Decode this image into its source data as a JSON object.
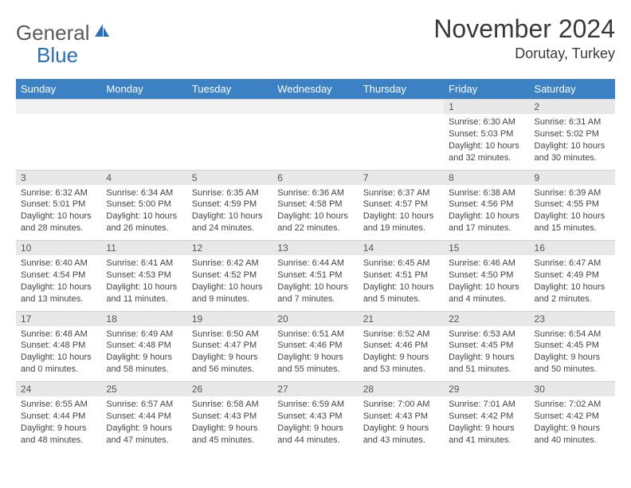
{
  "brand": {
    "part1": "General",
    "part2": "Blue"
  },
  "title": "November 2024",
  "location": "Dorutay, Turkey",
  "colors": {
    "header_bg": "#3b81c3",
    "header_text": "#ffffff",
    "daynum_bg": "#e8e8e8",
    "text": "#444444",
    "logo_gray": "#5a5a5a",
    "logo_blue": "#2a6fb5"
  },
  "weekdays": [
    "Sunday",
    "Monday",
    "Tuesday",
    "Wednesday",
    "Thursday",
    "Friday",
    "Saturday"
  ],
  "weeks": [
    {
      "nums": [
        "",
        "",
        "",
        "",
        "",
        "1",
        "2"
      ],
      "cells": [
        {
          "empty": true
        },
        {
          "empty": true
        },
        {
          "empty": true
        },
        {
          "empty": true
        },
        {
          "empty": true
        },
        {
          "sunrise": "Sunrise: 6:30 AM",
          "sunset": "Sunset: 5:03 PM",
          "daylight": "Daylight: 10 hours and 32 minutes."
        },
        {
          "sunrise": "Sunrise: 6:31 AM",
          "sunset": "Sunset: 5:02 PM",
          "daylight": "Daylight: 10 hours and 30 minutes."
        }
      ]
    },
    {
      "nums": [
        "3",
        "4",
        "5",
        "6",
        "7",
        "8",
        "9"
      ],
      "cells": [
        {
          "sunrise": "Sunrise: 6:32 AM",
          "sunset": "Sunset: 5:01 PM",
          "daylight": "Daylight: 10 hours and 28 minutes."
        },
        {
          "sunrise": "Sunrise: 6:34 AM",
          "sunset": "Sunset: 5:00 PM",
          "daylight": "Daylight: 10 hours and 26 minutes."
        },
        {
          "sunrise": "Sunrise: 6:35 AM",
          "sunset": "Sunset: 4:59 PM",
          "daylight": "Daylight: 10 hours and 24 minutes."
        },
        {
          "sunrise": "Sunrise: 6:36 AM",
          "sunset": "Sunset: 4:58 PM",
          "daylight": "Daylight: 10 hours and 22 minutes."
        },
        {
          "sunrise": "Sunrise: 6:37 AM",
          "sunset": "Sunset: 4:57 PM",
          "daylight": "Daylight: 10 hours and 19 minutes."
        },
        {
          "sunrise": "Sunrise: 6:38 AM",
          "sunset": "Sunset: 4:56 PM",
          "daylight": "Daylight: 10 hours and 17 minutes."
        },
        {
          "sunrise": "Sunrise: 6:39 AM",
          "sunset": "Sunset: 4:55 PM",
          "daylight": "Daylight: 10 hours and 15 minutes."
        }
      ]
    },
    {
      "nums": [
        "10",
        "11",
        "12",
        "13",
        "14",
        "15",
        "16"
      ],
      "cells": [
        {
          "sunrise": "Sunrise: 6:40 AM",
          "sunset": "Sunset: 4:54 PM",
          "daylight": "Daylight: 10 hours and 13 minutes."
        },
        {
          "sunrise": "Sunrise: 6:41 AM",
          "sunset": "Sunset: 4:53 PM",
          "daylight": "Daylight: 10 hours and 11 minutes."
        },
        {
          "sunrise": "Sunrise: 6:42 AM",
          "sunset": "Sunset: 4:52 PM",
          "daylight": "Daylight: 10 hours and 9 minutes."
        },
        {
          "sunrise": "Sunrise: 6:44 AM",
          "sunset": "Sunset: 4:51 PM",
          "daylight": "Daylight: 10 hours and 7 minutes."
        },
        {
          "sunrise": "Sunrise: 6:45 AM",
          "sunset": "Sunset: 4:51 PM",
          "daylight": "Daylight: 10 hours and 5 minutes."
        },
        {
          "sunrise": "Sunrise: 6:46 AM",
          "sunset": "Sunset: 4:50 PM",
          "daylight": "Daylight: 10 hours and 4 minutes."
        },
        {
          "sunrise": "Sunrise: 6:47 AM",
          "sunset": "Sunset: 4:49 PM",
          "daylight": "Daylight: 10 hours and 2 minutes."
        }
      ]
    },
    {
      "nums": [
        "17",
        "18",
        "19",
        "20",
        "21",
        "22",
        "23"
      ],
      "cells": [
        {
          "sunrise": "Sunrise: 6:48 AM",
          "sunset": "Sunset: 4:48 PM",
          "daylight": "Daylight: 10 hours and 0 minutes."
        },
        {
          "sunrise": "Sunrise: 6:49 AM",
          "sunset": "Sunset: 4:48 PM",
          "daylight": "Daylight: 9 hours and 58 minutes."
        },
        {
          "sunrise": "Sunrise: 6:50 AM",
          "sunset": "Sunset: 4:47 PM",
          "daylight": "Daylight: 9 hours and 56 minutes."
        },
        {
          "sunrise": "Sunrise: 6:51 AM",
          "sunset": "Sunset: 4:46 PM",
          "daylight": "Daylight: 9 hours and 55 minutes."
        },
        {
          "sunrise": "Sunrise: 6:52 AM",
          "sunset": "Sunset: 4:46 PM",
          "daylight": "Daylight: 9 hours and 53 minutes."
        },
        {
          "sunrise": "Sunrise: 6:53 AM",
          "sunset": "Sunset: 4:45 PM",
          "daylight": "Daylight: 9 hours and 51 minutes."
        },
        {
          "sunrise": "Sunrise: 6:54 AM",
          "sunset": "Sunset: 4:45 PM",
          "daylight": "Daylight: 9 hours and 50 minutes."
        }
      ]
    },
    {
      "nums": [
        "24",
        "25",
        "26",
        "27",
        "28",
        "29",
        "30"
      ],
      "cells": [
        {
          "sunrise": "Sunrise: 6:55 AM",
          "sunset": "Sunset: 4:44 PM",
          "daylight": "Daylight: 9 hours and 48 minutes."
        },
        {
          "sunrise": "Sunrise: 6:57 AM",
          "sunset": "Sunset: 4:44 PM",
          "daylight": "Daylight: 9 hours and 47 minutes."
        },
        {
          "sunrise": "Sunrise: 6:58 AM",
          "sunset": "Sunset: 4:43 PM",
          "daylight": "Daylight: 9 hours and 45 minutes."
        },
        {
          "sunrise": "Sunrise: 6:59 AM",
          "sunset": "Sunset: 4:43 PM",
          "daylight": "Daylight: 9 hours and 44 minutes."
        },
        {
          "sunrise": "Sunrise: 7:00 AM",
          "sunset": "Sunset: 4:43 PM",
          "daylight": "Daylight: 9 hours and 43 minutes."
        },
        {
          "sunrise": "Sunrise: 7:01 AM",
          "sunset": "Sunset: 4:42 PM",
          "daylight": "Daylight: 9 hours and 41 minutes."
        },
        {
          "sunrise": "Sunrise: 7:02 AM",
          "sunset": "Sunset: 4:42 PM",
          "daylight": "Daylight: 9 hours and 40 minutes."
        }
      ]
    }
  ]
}
